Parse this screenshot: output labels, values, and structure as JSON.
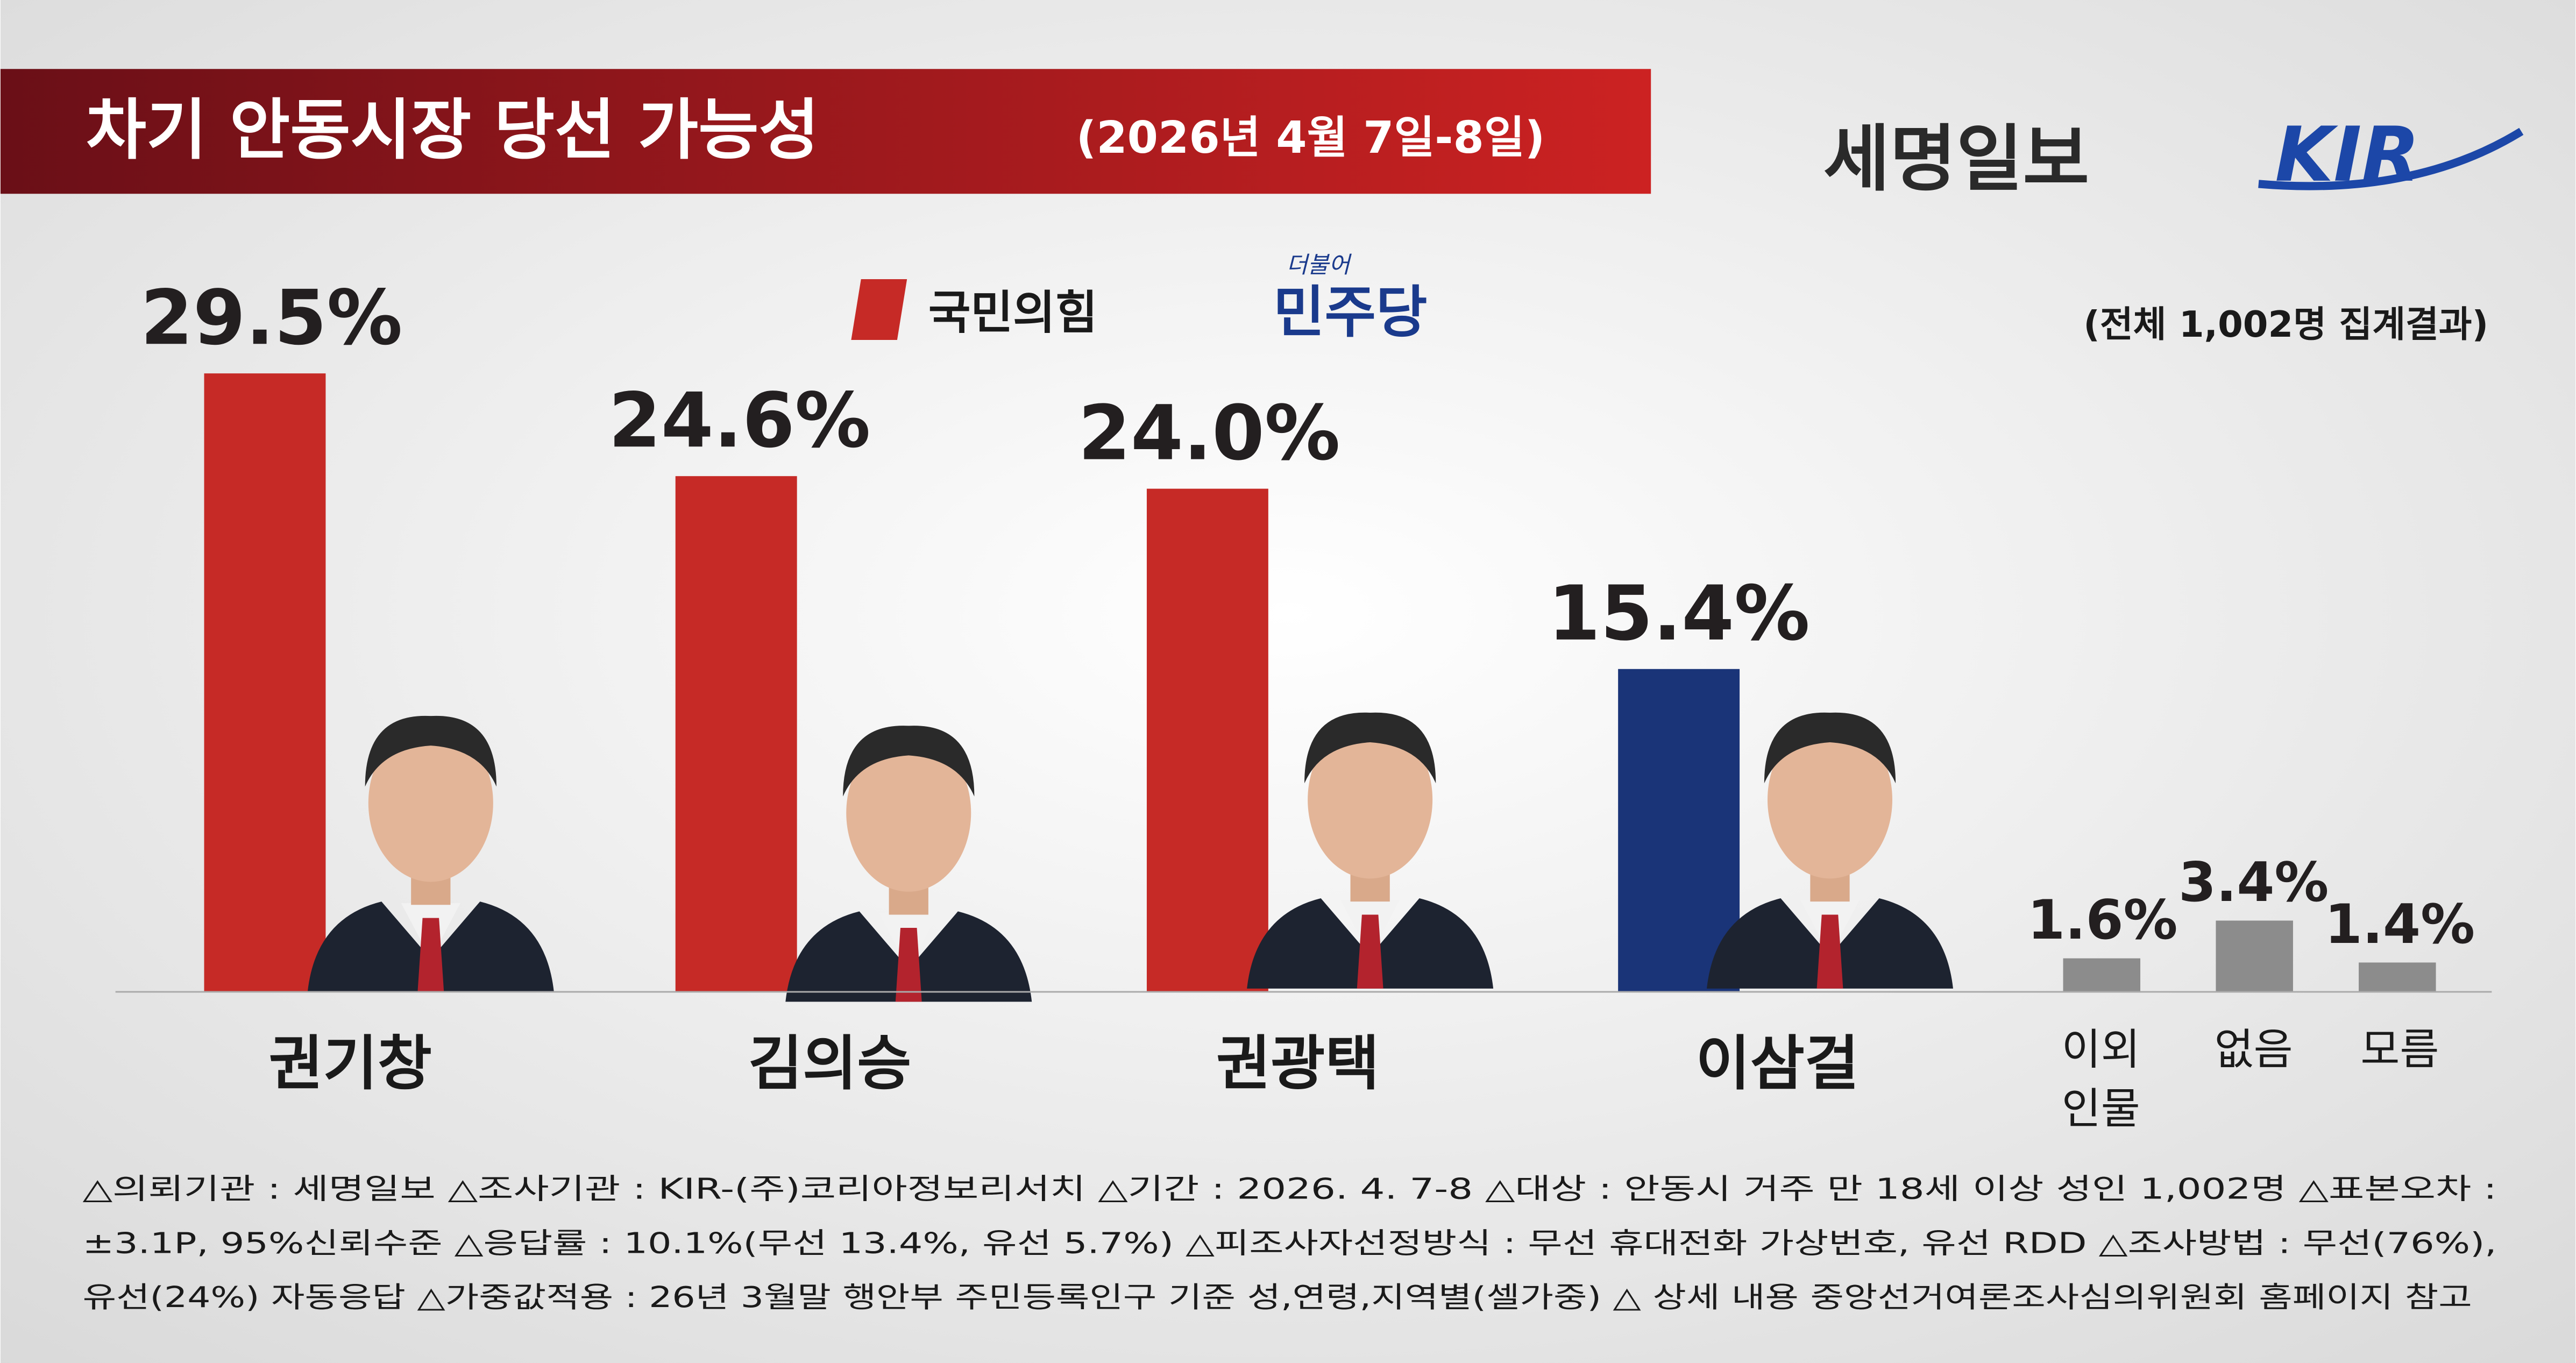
{
  "chart_data": {
    "type": "bar",
    "title": "차기 안동시장 당선 가능성",
    "subtitle": "(2026년 4월 7일-8일)",
    "publisher": "세명일보",
    "agency_logo": "KIR",
    "note": "(전체 1,002명 집계결과)",
    "legend": [
      {
        "name": "국민의힘",
        "color": "#c62a26"
      },
      {
        "name": "민주당",
        "prefix": "더불어",
        "color": "#1a3a8c"
      }
    ],
    "categories": [
      "권기창",
      "김의승",
      "권광택",
      "이삼걸",
      "이외 인물",
      "없음",
      "모름"
    ],
    "values": [
      29.5,
      24.6,
      24.0,
      15.4,
      1.6,
      3.4,
      1.4
    ],
    "value_labels": [
      "29.5%",
      "24.6%",
      "24.0%",
      "15.4%",
      "1.6%",
      "3.4%",
      "1.4%"
    ],
    "colors": [
      "#c62a26",
      "#c62a26",
      "#c62a26",
      "#1a3478",
      "#8c8c8c",
      "#8c8c8c",
      "#8c8c8c"
    ],
    "ylim": [
      0,
      30
    ],
    "footer": [
      "△의뢰기관 : 세명일보  △조사기관 : KIR-(주)코리아정보리서치  △기간 : 2026. 4. 7-8  △대상 : 안동시 거주 만 18세 이상 성인 1,002명  △표본오차 :",
      "±3.1P, 95%신뢰수준  △응답률 : 10.1%(무선 13.4%, 유선 5.7%)  △피조사자선정방식 : 무선 휴대전화 가상번호, 유선 RDD  △조사방법 : 무선(76%),",
      "유선(24%) 자동응답  △가중값적용 : 26년 3월말 행안부 주민등록인구 기준 성,연령,지역별(셀가중)  △ 상세 내용 중앙선거여론조사심의위원회 홈페이지 참고"
    ]
  }
}
